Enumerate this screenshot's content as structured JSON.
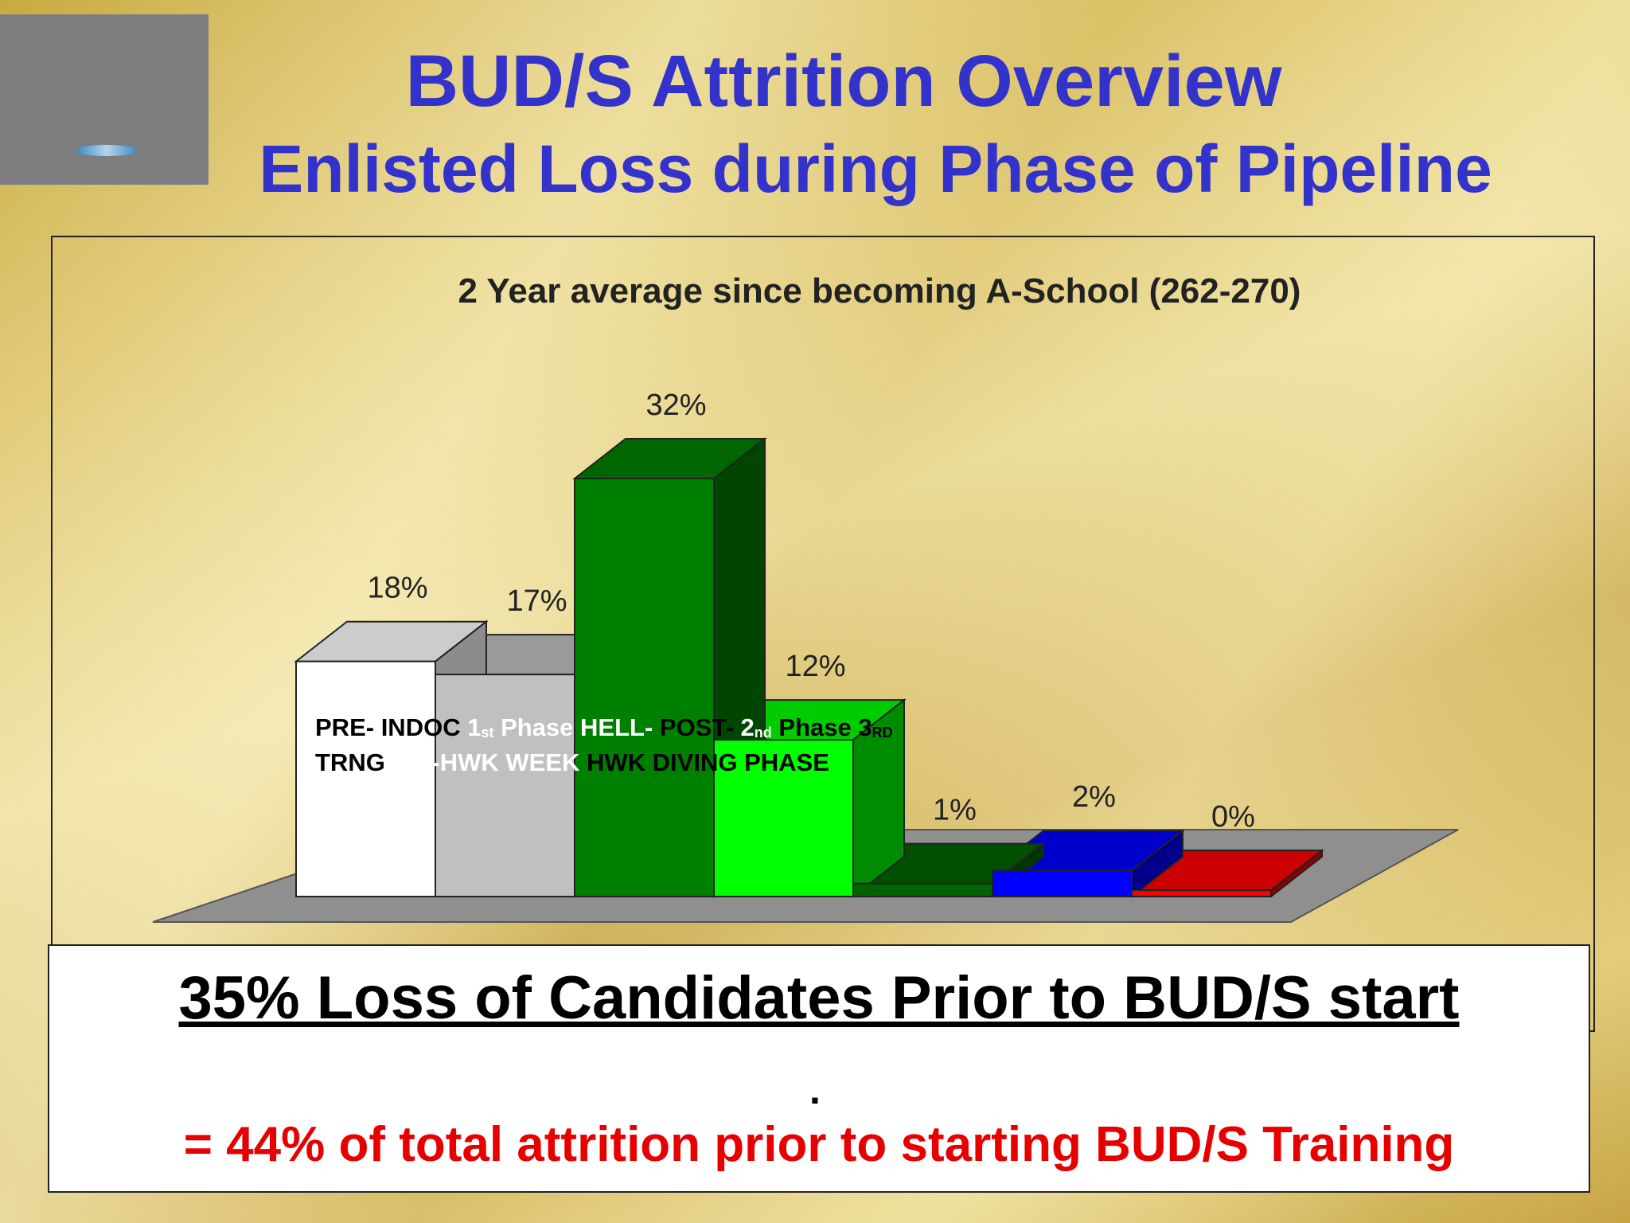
{
  "slide": {
    "title": "BUD/S Attrition Overview",
    "subtitle": "Enlisted Loss during Phase of Pipeline"
  },
  "chart_data": {
    "type": "bar",
    "title": "2 Year average since becoming A-School (262-270)",
    "categories": [
      "PRE- TRNG",
      "INDOC",
      "1st Phase Pre-HWK",
      "HELL- WEEK",
      "POST- HWK",
      "2nd Phase DIVING",
      "3RD PHASE"
    ],
    "values": [
      18,
      17,
      32,
      12,
      1,
      2,
      0
    ],
    "value_labels": [
      "18%",
      "17%",
      "32%",
      "12%",
      "1%",
      "2%",
      "0%"
    ],
    "colors": [
      "#ffffff",
      "#c0c0c0",
      "#008000",
      "#00ff00",
      "#006400",
      "#0000ff",
      "#ff0000"
    ],
    "unit": "%",
    "ylim": [
      0,
      35
    ],
    "grid": false,
    "legend": "none",
    "style": "3d"
  },
  "category_text": {
    "line1": [
      {
        "text": "PRE- ",
        "tone": "dark"
      },
      {
        "text": "INDOC ",
        "tone": "dark"
      },
      {
        "text": "1",
        "tone": "light"
      },
      {
        "text": "st",
        "tone": "light",
        "sub": true
      },
      {
        "text": " Phase ",
        "tone": "light"
      },
      {
        "text": "HELL- ",
        "tone": "light"
      },
      {
        "text": "POST- ",
        "tone": "dark"
      },
      {
        "text": "2",
        "tone": "light"
      },
      {
        "text": "nd",
        "tone": "light",
        "sub": true
      },
      {
        "text": " Phase ",
        "tone": "dark"
      },
      {
        "text": "3",
        "tone": "dark"
      },
      {
        "text": "RD",
        "tone": "dark",
        "sub": true
      }
    ],
    "line2": [
      {
        "text": "TRNG ",
        "tone": "dark"
      },
      {
        "text": "Pre-HWK ",
        "tone": "light"
      },
      {
        "text": "WEEK ",
        "tone": "light"
      },
      {
        "text": "HWK ",
        "tone": "dark"
      },
      {
        "text": "DIVING ",
        "tone": "dark"
      },
      {
        "text": "PHASE",
        "tone": "dark"
      }
    ]
  },
  "summary": {
    "headline": "35% Loss of Candidates Prior to BUD/S start",
    "separator": ".",
    "footnote": "= 44% of total attrition prior to starting BUD/S Training"
  }
}
